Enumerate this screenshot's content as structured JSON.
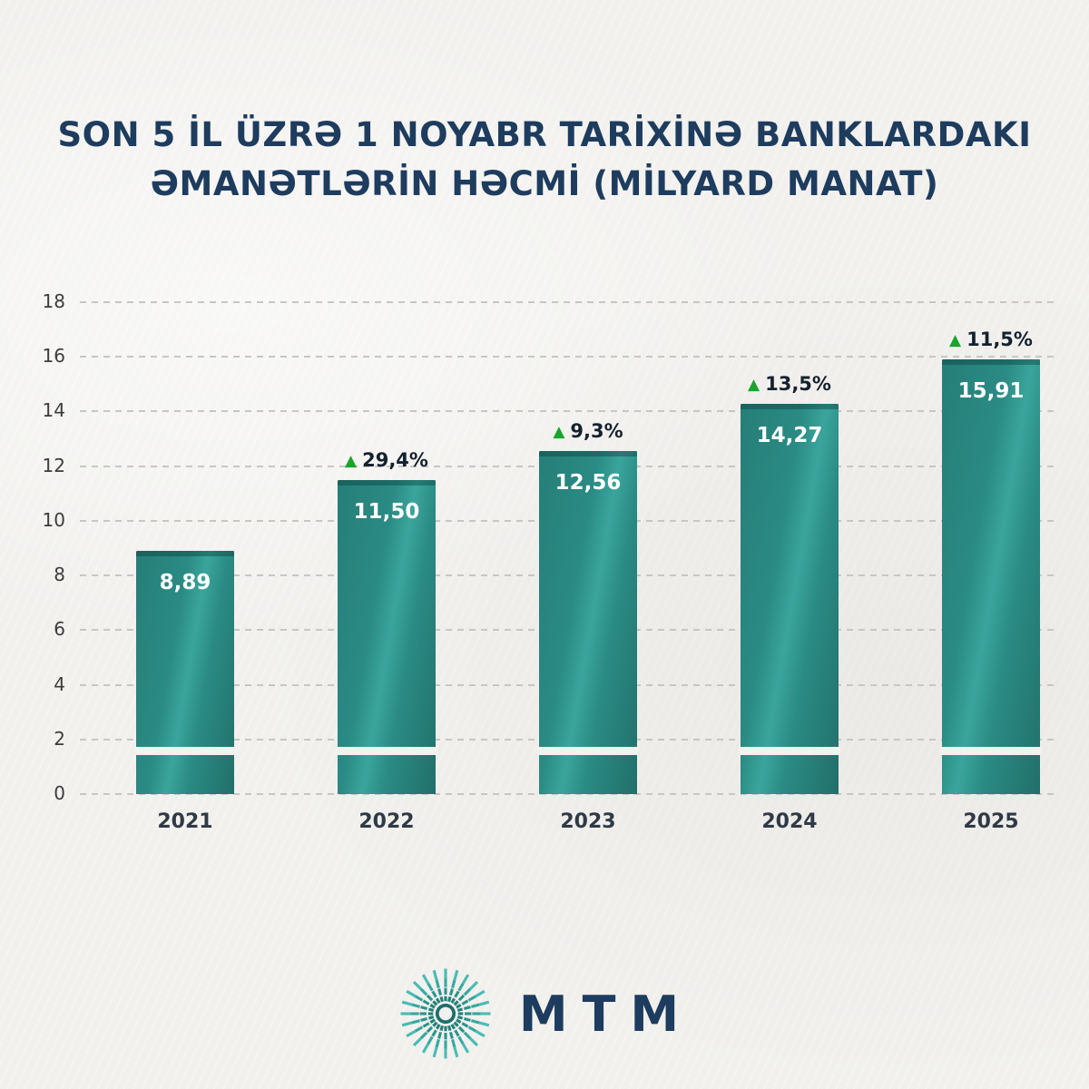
{
  "title": {
    "line1": "SON 5 İL ÜZRƏ 1 NOYABR TARİXİNƏ BANKLARDAKI",
    "line2": "ƏMANƏTLƏRİN HƏCMİ (MİLYARD MANAT)"
  },
  "chart_data": {
    "type": "bar",
    "title": "SON 5 İL ÜZRƏ 1 NOYABR TARİXİNƏ BANKLARDAKI ƏMANƏTLƏRİN HƏCMİ (MİLYARD MANAT)",
    "categories": [
      "2021",
      "2022",
      "2023",
      "2024",
      "2025"
    ],
    "values": [
      8.89,
      11.5,
      12.56,
      14.27,
      15.91
    ],
    "value_labels": [
      "8,89",
      "11,50",
      "12,56",
      "14,27",
      "15,91"
    ],
    "growth_labels": [
      null,
      "29,4%",
      "9,3%",
      "13,5%",
      "11,5%"
    ],
    "up_marker": "▲",
    "xlabel": "",
    "ylabel": "",
    "ylim": [
      0,
      18
    ],
    "yticks": [
      0,
      2,
      4,
      6,
      8,
      10,
      12,
      14,
      16,
      18
    ],
    "grid": "dashed-horizontal",
    "legend": "none"
  },
  "logo": {
    "text": "MTM"
  },
  "colors": {
    "bar_teal": "#2a8b84",
    "bar_teal_dark": "#226f6a",
    "bar_teal_light": "#3aa59c",
    "growth_green": "#17a52c",
    "title_navy": "#1d3c5e",
    "background": "#f3f2ef",
    "value_text": "#ffffff",
    "axis_text": "#3c3c3c"
  }
}
